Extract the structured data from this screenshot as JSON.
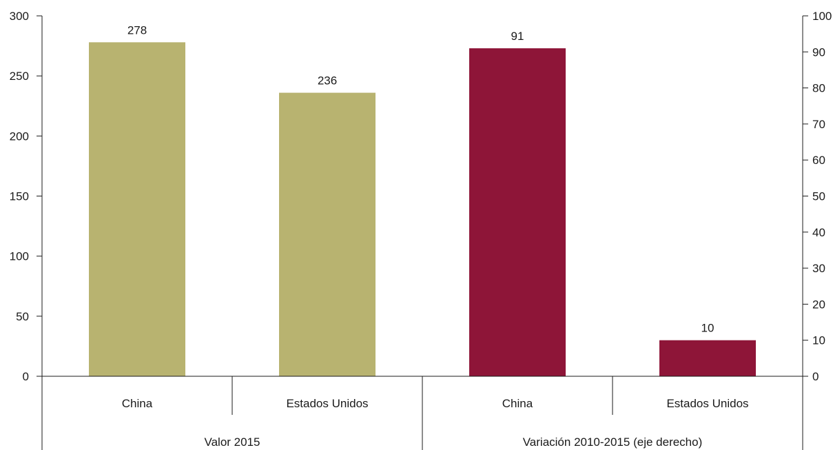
{
  "chart_data": {
    "type": "bar",
    "groups": [
      {
        "label": "Valor 2015",
        "axis": "left",
        "color": "#b8b370",
        "categories": [
          "China",
          "Estados Unidos"
        ],
        "values": [
          278,
          236
        ],
        "value_labels": [
          "278",
          "236"
        ]
      },
      {
        "label": "Variación 2010-2015 (eje derecho)",
        "axis": "right",
        "color": "#8e1538",
        "categories": [
          "China",
          "Estados Unidos"
        ],
        "values": [
          91,
          10
        ],
        "value_labels": [
          "91",
          "10"
        ]
      }
    ],
    "left_axis": {
      "ylim": [
        0,
        300
      ],
      "ticks": [
        "0",
        "50",
        "100",
        "150",
        "200",
        "250",
        "300"
      ]
    },
    "right_axis": {
      "ylim": [
        0,
        100
      ],
      "ticks": [
        "0",
        "10",
        "20",
        "30",
        "40",
        "50",
        "60",
        "70",
        "80",
        "90",
        "100"
      ]
    },
    "grid": false
  }
}
